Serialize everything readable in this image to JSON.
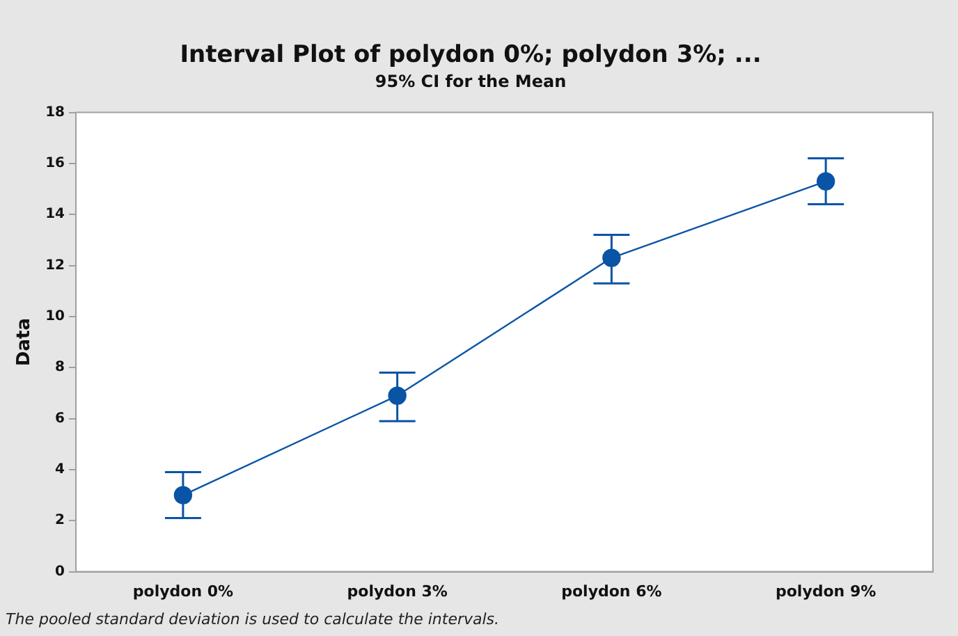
{
  "chart_data": {
    "type": "line",
    "title": "Interval Plot of polydon 0%; polydon 3%; ...",
    "subtitle": "95% CI for the Mean",
    "ylabel": "Data",
    "categories": [
      "polydon 0%",
      "polydon 3%",
      "polydon 6%",
      "polydon 9%"
    ],
    "series": [
      {
        "color": "#0a54a6",
        "values": [
          3.0,
          6.9,
          12.3,
          15.3
        ],
        "errors": [
          [
            2.1,
            3.9
          ],
          [
            5.9,
            7.8
          ],
          [
            11.3,
            13.2
          ],
          [
            14.4,
            16.2
          ]
        ]
      }
    ],
    "ylim": [
      0,
      18
    ],
    "yticks": [
      0,
      2,
      4,
      6,
      8,
      10,
      12,
      14,
      16,
      18
    ],
    "grid": false,
    "legend": false,
    "marker": "circle",
    "line_style": "solid",
    "annotations": [
      "The pooled standard deviation is used to calculate the intervals."
    ]
  }
}
